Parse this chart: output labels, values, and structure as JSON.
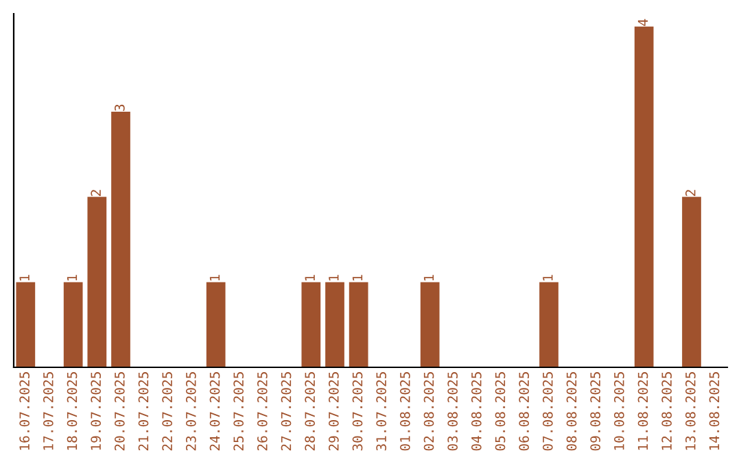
{
  "chart_data": {
    "type": "bar",
    "categories": [
      "16.07.2025",
      "17.07.2025",
      "18.07.2025",
      "19.07.2025",
      "20.07.2025",
      "21.07.2025",
      "22.07.2025",
      "23.07.2025",
      "24.07.2025",
      "25.07.2025",
      "26.07.2025",
      "27.07.2025",
      "28.07.2025",
      "29.07.2025",
      "30.07.2025",
      "31.07.2025",
      "01.08.2025",
      "02.08.2025",
      "03.08.2025",
      "04.08.2025",
      "05.08.2025",
      "06.08.2025",
      "07.08.2025",
      "08.08.2025",
      "09.08.2025",
      "10.08.2025",
      "11.08.2025",
      "12.08.2025",
      "13.08.2025",
      "14.08.2025"
    ],
    "values": [
      1,
      0,
      1,
      2,
      3,
      0,
      0,
      0,
      1,
      0,
      0,
      0,
      1,
      1,
      1,
      0,
      0,
      1,
      0,
      0,
      0,
      0,
      1,
      0,
      0,
      0,
      4,
      0,
      2,
      0
    ],
    "value_labels": [
      "1",
      null,
      "1",
      "2",
      "3",
      null,
      null,
      null,
      "1",
      null,
      null,
      null,
      "1",
      "1",
      "1",
      null,
      null,
      "1",
      null,
      null,
      null,
      null,
      "1",
      null,
      null,
      null,
      "4",
      null,
      "2",
      null
    ],
    "color": "#a0522d",
    "ylim": [
      0,
      4.15
    ],
    "tick_labels": "x",
    "grid": false,
    "legend": false
  }
}
